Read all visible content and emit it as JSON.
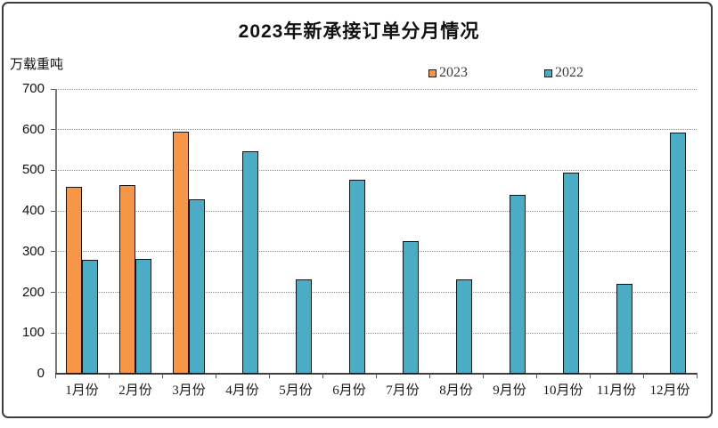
{
  "frame": {
    "border_color": "#3d3d3d",
    "background": "#ffffff"
  },
  "chart_data": {
    "type": "bar",
    "title": "2023年新承接订单分月情况",
    "ylabel": "万载重吨",
    "xlabel": "",
    "categories": [
      "1月份",
      "2月份",
      "3月份",
      "4月份",
      "5月份",
      "6月份",
      "7月份",
      "8月份",
      "9月份",
      "10月份",
      "11月份",
      "12月份"
    ],
    "series": [
      {
        "name": "2023",
        "color": "#F79646",
        "values": [
          460,
          463,
          595,
          null,
          null,
          null,
          null,
          null,
          null,
          null,
          null,
          null
        ]
      },
      {
        "name": "2022",
        "color": "#4BACC6",
        "values": [
          281,
          283,
          428,
          547,
          231,
          477,
          326,
          232,
          440,
          494,
          221,
          592
        ]
      }
    ],
    "ylim": [
      0,
      700
    ],
    "ytick_step": 100,
    "yticks": [
      0,
      100,
      200,
      300,
      400,
      500,
      600,
      700
    ],
    "grid": "horizontal-dotted",
    "legend_position": "top-center",
    "bar_border_color": "#141414"
  }
}
